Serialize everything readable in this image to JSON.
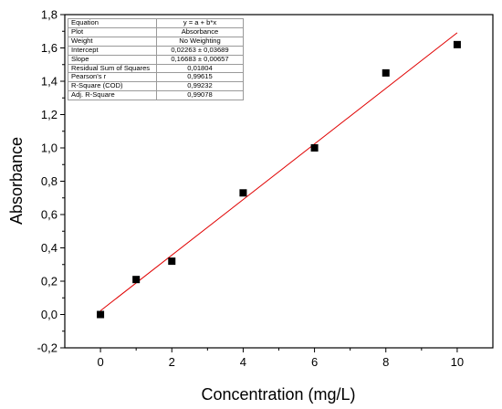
{
  "chart_data": {
    "type": "scatter",
    "xlabel": "Concentration (mg/L)",
    "ylabel": "Absorbance",
    "xlim": [
      -1,
      11
    ],
    "ylim": [
      -0.2,
      1.8
    ],
    "x_ticks": [
      "0",
      "2",
      "4",
      "6",
      "8",
      "10"
    ],
    "y_ticks": [
      "-0,2",
      "0,0",
      "0,2",
      "0,4",
      "0,6",
      "0,8",
      "1,0",
      "1,2",
      "1,4",
      "1,6",
      "1,8"
    ],
    "series": [
      {
        "x": [
          0,
          1,
          2,
          4,
          6,
          8,
          10
        ],
        "y": [
          0.0,
          0.21,
          0.32,
          0.73,
          1.0,
          1.45,
          1.62
        ]
      }
    ],
    "fit": {
      "intercept": 0.02263,
      "slope": 0.16683,
      "x_range": [
        0,
        10
      ],
      "color": "#e00000"
    },
    "grid": false,
    "fit_table": [
      {
        "key": "Equation",
        "value": "y = a + b*x"
      },
      {
        "key": "Plot",
        "value": "Absorbance"
      },
      {
        "key": "Weight",
        "value": "No Weighting"
      },
      {
        "key": "Intercept",
        "value": "0,02263 ± 0,03689"
      },
      {
        "key": "Slope",
        "value": "0,16683 ± 0,00657"
      },
      {
        "key": "Residual Sum of Squares",
        "value": "0,01804"
      },
      {
        "key": "Pearson's r",
        "value": "0,99615"
      },
      {
        "key": "R-Square (COD)",
        "value": "0,99232"
      },
      {
        "key": "Adj. R-Square",
        "value": "0,99078"
      }
    ]
  }
}
